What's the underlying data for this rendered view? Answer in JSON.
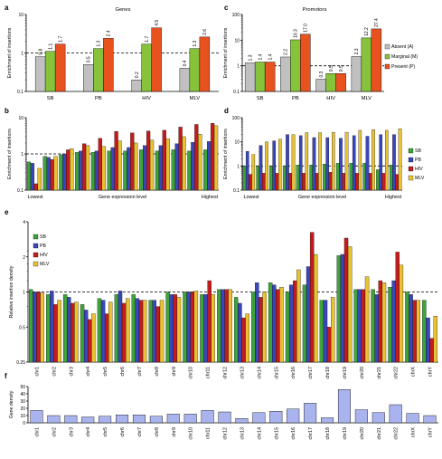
{
  "colors": {
    "absent": "#c0c0c0",
    "marginal": "#86c23a",
    "present": "#e8521f",
    "sb": "#3ea33a",
    "pb": "#3a47b8",
    "hiv": "#c41c1c",
    "mlv": "#e9c234",
    "gene": "#a9b4ee",
    "edge": "#000000",
    "refline": "#000000"
  },
  "chart_data": [
    {
      "panel": "a",
      "type": "bar",
      "title": "Genes",
      "ylabel": "Enrichment of insertions",
      "log_y": true,
      "ylim": [
        0.1,
        10
      ],
      "yticks": [
        "0.1",
        "1",
        "10"
      ],
      "refline": 1,
      "categories": [
        "SB",
        "PB",
        "HIV",
        "MLV"
      ],
      "series": [
        {
          "name": "Absent (A)",
          "color_key": "absent",
          "values": [
            0.8,
            0.5,
            0.2,
            0.4
          ],
          "labels": [
            "0.8",
            "0.5",
            "0.2",
            "0.4"
          ]
        },
        {
          "name": "Marginal (M)",
          "color_key": "marginal",
          "values": [
            1.1,
            1.3,
            1.7,
            1.3
          ],
          "labels": [
            "1.1",
            "1.3",
            "1.7",
            "1.3"
          ]
        },
        {
          "name": "Present (P)",
          "color_key": "present",
          "values": [
            1.7,
            2.4,
            4.5,
            2.6
          ],
          "labels": [
            "1.7",
            "2.4",
            "4.5",
            "2.6"
          ]
        }
      ]
    },
    {
      "panel": "c",
      "type": "bar",
      "title": "Promotors",
      "ylabel": "Enrichment of insertions",
      "log_y": true,
      "ylim": [
        0.1,
        100
      ],
      "yticks": [
        "0.1",
        "1",
        "10",
        "100"
      ],
      "refline": 1,
      "categories": [
        "SB",
        "PB",
        "HIV",
        "MLV"
      ],
      "legend": [
        "Absent (A)",
        "Marginal (M)",
        "Present (P)"
      ],
      "series": [
        {
          "name": "Absent (A)",
          "color_key": "absent",
          "values": [
            1.3,
            2.2,
            0.3,
            2.3
          ],
          "labels": [
            "1.3",
            "2.2",
            "0.3",
            "2.3"
          ]
        },
        {
          "name": "Marginal (M)",
          "color_key": "marginal",
          "values": [
            1.4,
            10.3,
            0.5,
            12.2
          ],
          "labels": [
            "1.4",
            "10.3",
            "0.5",
            "12.2"
          ]
        },
        {
          "name": "Present (P)",
          "color_key": "present",
          "values": [
            1.4,
            17.0,
            0.5,
            27.4
          ],
          "labels": [
            "1.4",
            "17.0",
            "0.5",
            "27.4"
          ]
        }
      ]
    },
    {
      "panel": "b",
      "type": "bar",
      "ylabel": "Enrichment of insertions",
      "xlabel": "Gene expression level",
      "x_low": "Lowest",
      "x_high": "Highest",
      "log_y": true,
      "ylim": [
        0.1,
        10
      ],
      "yticks": [
        "0.1",
        "1",
        "10"
      ],
      "refline": 1,
      "groups": 12,
      "series": [
        {
          "name": "SB",
          "color_key": "sb",
          "values": [
            0.6,
            0.85,
            0.95,
            1.1,
            1.1,
            1.2,
            1.2,
            1.3,
            1.2,
            1.3,
            1.2,
            1.3
          ]
        },
        {
          "name": "PB",
          "color_key": "pb",
          "values": [
            0.55,
            0.8,
            1.0,
            1.2,
            1.2,
            1.5,
            1.5,
            1.7,
            1.7,
            1.9,
            2.1,
            2.2
          ]
        },
        {
          "name": "HIV",
          "color_key": "hiv",
          "values": [
            0.15,
            0.7,
            1.3,
            1.9,
            2.7,
            4.2,
            3.8,
            4.3,
            4.5,
            5.5,
            6.5,
            7.0
          ]
        },
        {
          "name": "MLV",
          "color_key": "mlv",
          "values": [
            0.4,
            0.85,
            1.4,
            1.7,
            1.6,
            2.3,
            2.0,
            2.4,
            2.6,
            3.0,
            3.5,
            6.0
          ]
        }
      ]
    },
    {
      "panel": "d",
      "type": "bar",
      "ylabel": "Enrichment of insertions",
      "xlabel": "Gene expression level",
      "x_low": "Lowest",
      "x_high": "Highest",
      "log_y": true,
      "ylim": [
        0.1,
        100
      ],
      "yticks": [
        "0.1",
        "1",
        "10",
        "100"
      ],
      "refline": 1,
      "groups": 12,
      "legend": [
        "SB",
        "PB",
        "HIV",
        "MLV"
      ],
      "series": [
        {
          "name": "SB",
          "color_key": "sb",
          "values": [
            1.0,
            1.0,
            1.0,
            1.0,
            1.1,
            1.1,
            1.2,
            1.3,
            1.3,
            1.3,
            0.7,
            1.1
          ]
        },
        {
          "name": "PB",
          "color_key": "pb",
          "values": [
            4.0,
            7.0,
            11.0,
            20.0,
            18.0,
            15.0,
            15.0,
            14.0,
            18.0,
            17.0,
            20.0,
            20.0
          ]
        },
        {
          "name": "HIV",
          "color_key": "hiv",
          "values": [
            0.45,
            0.5,
            0.5,
            0.5,
            0.5,
            0.5,
            0.55,
            0.5,
            0.5,
            0.5,
            0.5,
            0.45
          ]
        },
        {
          "name": "MLV",
          "color_key": "mlv",
          "values": [
            3.0,
            10.0,
            13.0,
            20.0,
            24.0,
            24.0,
            25.0,
            25.0,
            30.0,
            32.0,
            30.0,
            35.0
          ]
        }
      ]
    },
    {
      "panel": "e",
      "type": "bar",
      "ylabel": "Relative insertion density",
      "log_y": true,
      "ylim": [
        0.25,
        4
      ],
      "yticks": [
        "0.25",
        "0.5",
        "1",
        "2",
        "4"
      ],
      "refline": 1,
      "categories": [
        "chr1",
        "chr2",
        "chr3",
        "chr4",
        "chr5",
        "chr6",
        "chr7",
        "chr8",
        "chr9",
        "chr10",
        "chr11",
        "chr12",
        "chr13",
        "chr14",
        "chr15",
        "chr16",
        "chr17",
        "chr18",
        "chr19",
        "chr20",
        "chr21",
        "chr22",
        "chrX",
        "chrY"
      ],
      "legend": [
        "SB",
        "PB",
        "HIV",
        "MLV"
      ],
      "series": [
        {
          "name": "SB",
          "color_key": "sb",
          "values": [
            1.05,
            0.95,
            0.95,
            0.78,
            0.88,
            0.95,
            0.95,
            0.85,
            1.0,
            1.0,
            0.95,
            1.05,
            0.9,
            1.0,
            1.2,
            1.0,
            1.15,
            0.85,
            2.05,
            1.05,
            1.05,
            1.1,
            1.0,
            0.85
          ]
        },
        {
          "name": "PB",
          "color_key": "pb",
          "values": [
            1.0,
            1.02,
            0.9,
            0.7,
            0.85,
            1.02,
            0.88,
            0.85,
            0.95,
            1.0,
            0.95,
            1.05,
            0.8,
            1.2,
            1.15,
            1.15,
            1.65,
            0.85,
            2.1,
            1.05,
            0.95,
            1.25,
            0.95,
            0.6
          ]
        },
        {
          "name": "HIV",
          "color_key": "hiv",
          "values": [
            1.0,
            0.78,
            0.8,
            0.58,
            0.65,
            0.8,
            0.85,
            0.75,
            0.95,
            1.0,
            1.25,
            1.05,
            0.6,
            0.9,
            1.05,
            1.25,
            3.25,
            0.5,
            2.9,
            1.05,
            1.25,
            2.2,
            0.85,
            0.4
          ]
        },
        {
          "name": "MLV",
          "color_key": "mlv",
          "values": [
            0.98,
            0.85,
            0.82,
            0.65,
            0.82,
            0.88,
            0.85,
            0.85,
            0.9,
            1.02,
            0.95,
            1.05,
            0.65,
            1.0,
            1.1,
            1.55,
            2.1,
            0.9,
            2.45,
            1.35,
            1.2,
            1.7,
            0.85,
            0.62
          ]
        }
      ]
    },
    {
      "panel": "f",
      "type": "bar",
      "ylabel": "Gene density",
      "ylim": [
        0,
        50
      ],
      "yticks": [
        "0",
        "10",
        "20",
        "30",
        "40",
        "50"
      ],
      "categories": [
        "chr1",
        "chr2",
        "chr3",
        "chr4",
        "chr5",
        "chr6",
        "chr7",
        "chr8",
        "chr9",
        "chr10",
        "chr11",
        "chr12",
        "chr13",
        "chr14",
        "chr15",
        "chr16",
        "chr17",
        "chr18",
        "chr19",
        "chr20",
        "chr21",
        "chr22",
        "chrX",
        "chrY"
      ],
      "values": [
        17,
        10,
        10,
        8,
        9,
        11,
        11,
        9,
        12,
        12,
        17,
        15,
        6,
        14,
        16,
        19,
        27,
        7,
        46,
        18,
        14,
        25,
        13,
        10
      ]
    }
  ]
}
